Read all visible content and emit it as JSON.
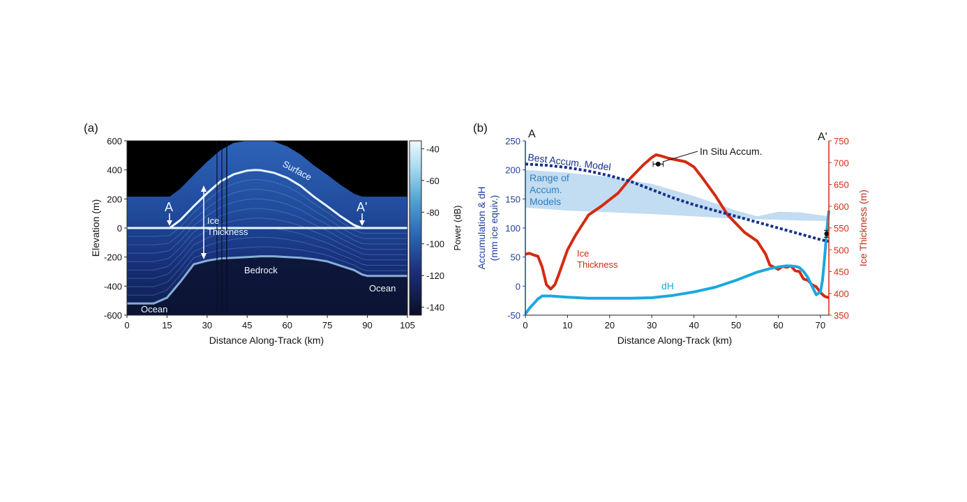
{
  "panel_a": {
    "label": "(a)",
    "ylabel": "Elevation (m)",
    "xlabel": "Distance Along-Track (km)",
    "colorbar_label": "Power (dB)",
    "colorbar_ticks": [
      -40,
      -60,
      -80,
      -100,
      -120,
      -140
    ],
    "annotations": {
      "surface": "Surface",
      "ice_thickness_line1": "Ice",
      "ice_thickness_line2": "Thickness",
      "bedrock": "Bedrock",
      "ocean_left": "Ocean",
      "ocean_right": "Ocean",
      "point_a": "A",
      "point_a_prime": "A'"
    }
  },
  "panel_b": {
    "label": "(b)",
    "ylabel_left_line1": "Accumulation & dH",
    "ylabel_left_line2": "(mm ice equiv.)",
    "ylabel_right": "Ice Thickness (m)",
    "xlabel": "Distance Along-Track (km)",
    "corner_a": "A",
    "corner_a_prime": "A'",
    "annotations": {
      "best_model": "Best Accum. Model",
      "range_line1": "Range of",
      "range_line2": "Accum.",
      "range_line3": "Models",
      "ice_line1": "Ice",
      "ice_line2": "Thickness",
      "dh": "dH",
      "in_situ": "In Situ Accum."
    }
  },
  "colors": {
    "accum_axis": "#1f3f9a",
    "thickness": "#d42a10",
    "dh": "#1aa8e0",
    "best_model": "#16308a",
    "range_fill": "#b7d6ee",
    "range_text": "#2f7fbf"
  },
  "chart_data": [
    {
      "type": "heatmap",
      "title": "",
      "xlabel": "Distance Along-Track (km)",
      "ylabel": "Elevation (m)",
      "xlim": [
        0,
        105
      ],
      "ylim": [
        -600,
        600
      ],
      "xticks": [
        0,
        15,
        30,
        45,
        60,
        75,
        90,
        105
      ],
      "yticks": [
        -600,
        -400,
        -200,
        0,
        200,
        400,
        600
      ],
      "colorbar": {
        "label": "Power (dB)",
        "range": [
          -145,
          -35
        ],
        "ticks": [
          -40,
          -60,
          -80,
          -100,
          -120,
          -140
        ]
      },
      "surface_profile": {
        "x": [
          0,
          5,
          10,
          15,
          16,
          20,
          25,
          30,
          35,
          40,
          45,
          48,
          50,
          55,
          60,
          65,
          70,
          75,
          80,
          85,
          88,
          90,
          95,
          100,
          105
        ],
        "y": [
          0,
          0,
          0,
          0,
          0,
          55,
          150,
          240,
          320,
          370,
          395,
          400,
          398,
          380,
          345,
          290,
          215,
          150,
          80,
          20,
          0,
          0,
          0,
          0,
          0
        ]
      },
      "bedrock_profile": {
        "x": [
          0,
          10,
          15,
          20,
          25,
          30,
          35,
          40,
          45,
          50,
          55,
          60,
          65,
          70,
          75,
          80,
          85,
          88,
          90,
          95,
          105
        ],
        "y": [
          -520,
          -520,
          -480,
          -370,
          -250,
          -225,
          -210,
          -205,
          -200,
          -195,
          -195,
          -200,
          -205,
          -215,
          -230,
          -260,
          -290,
          -320,
          -330,
          -330,
          -330
        ]
      },
      "annotation_x": {
        "A": 16,
        "A_prime": 88
      }
    },
    {
      "type": "line",
      "title": "",
      "xlabel": "Distance Along-Track (km)",
      "ylabel": "Accumulation & dH (mm ice equiv.)",
      "ylabel_right": "Ice Thickness (m)",
      "xlim": [
        0,
        72
      ],
      "ylim": [
        -50,
        250
      ],
      "ylim_right": [
        350,
        750
      ],
      "xticks": [
        0,
        10,
        20,
        30,
        40,
        50,
        60,
        70
      ],
      "yticks": [
        -50,
        0,
        50,
        100,
        150,
        200,
        250
      ],
      "yticks_right": [
        350,
        400,
        450,
        500,
        550,
        600,
        650,
        700,
        750
      ],
      "series": [
        {
          "name": "Ice Thickness",
          "axis": "right",
          "x": [
            0,
            1,
            2,
            3,
            4,
            5,
            6,
            7,
            8,
            10,
            12,
            15,
            18,
            20,
            22,
            25,
            28,
            30,
            31,
            32,
            34,
            36,
            38,
            40,
            42,
            45,
            48,
            50,
            52,
            55,
            57,
            58,
            60,
            61,
            62,
            63,
            64,
            65,
            66,
            67,
            68,
            69,
            70,
            71,
            72
          ],
          "y": [
            490,
            492,
            488,
            485,
            460,
            420,
            410,
            420,
            445,
            500,
            535,
            580,
            600,
            615,
            630,
            665,
            695,
            712,
            718,
            716,
            710,
            706,
            702,
            690,
            665,
            625,
            580,
            560,
            540,
            520,
            490,
            465,
            455,
            462,
            460,
            463,
            452,
            450,
            433,
            430,
            420,
            415,
            402,
            393,
            390
          ]
        },
        {
          "name": "dH",
          "axis": "left",
          "x": [
            0,
            1,
            2,
            3,
            4,
            6,
            10,
            15,
            20,
            25,
            30,
            35,
            40,
            45,
            50,
            55,
            58,
            60,
            62,
            64,
            65,
            66,
            67,
            68,
            69,
            70,
            70.5,
            71,
            71.5,
            72
          ],
          "y": [
            -48,
            -38,
            -30,
            -22,
            -17,
            -17,
            -19,
            -21,
            -21,
            -21,
            -20,
            -16,
            -10,
            -2,
            10,
            24,
            30,
            33,
            35,
            34,
            32,
            25,
            15,
            0,
            -15,
            -10,
            10,
            50,
            95,
            130
          ]
        },
        {
          "name": "Best Accum. Model",
          "axis": "left",
          "x": [
            0,
            5,
            10,
            15,
            20,
            25,
            30,
            35,
            40,
            45,
            50,
            55,
            60,
            65,
            70,
            72
          ],
          "y": [
            210,
            208,
            204,
            198,
            190,
            180,
            166,
            152,
            140,
            130,
            120,
            110,
            100,
            90,
            80,
            77
          ]
        }
      ],
      "range_band": {
        "name": "Range of Accum. Models",
        "x": [
          0,
          10,
          20,
          30,
          40,
          50,
          55,
          60,
          65,
          72
        ],
        "upper": [
          200,
          195,
          188,
          176,
          155,
          130,
          120,
          128,
          127,
          120
        ],
        "lower": [
          135,
          130,
          127,
          124,
          120,
          116,
          115,
          114,
          113,
          112
        ]
      },
      "in_situ_points": [
        {
          "x": 31.5,
          "y": 210,
          "xerr": 1.2
        },
        {
          "x": 71.5,
          "y": 90,
          "yerr": 6
        }
      ]
    }
  ]
}
